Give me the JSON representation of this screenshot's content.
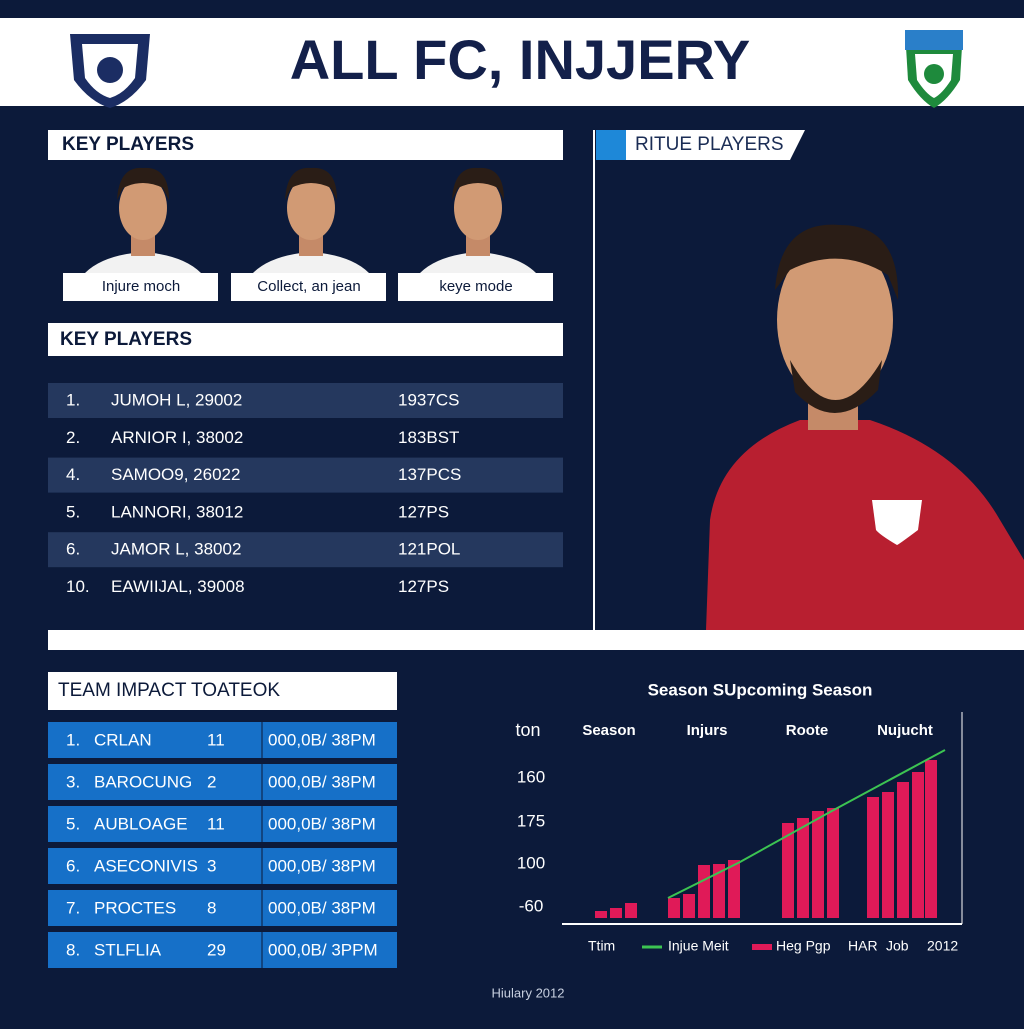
{
  "header": {
    "title": "ALL FC, INJJERY"
  },
  "key_players": {
    "title": "KEY PLAYERS",
    "cards": [
      "Injure moch",
      "Collect, an jean",
      "keye mode"
    ]
  },
  "key_table": {
    "title": "KEY PLAYERS",
    "rows": [
      [
        "1.",
        "JUMOH L, 29002",
        "1937CS"
      ],
      [
        "2.",
        "ARNIOR I, 38002",
        "183BST"
      ],
      [
        "4.",
        "SAMOO9, 26022",
        "137PCS"
      ],
      [
        "5.",
        "LANNORI, 38012",
        "127PS"
      ],
      [
        "6.",
        "JAMOR L, 38002",
        "121POL"
      ],
      [
        "10.",
        "EAWIIJAL, 39008",
        "127PS"
      ]
    ]
  },
  "feature": {
    "title": "RITUE PLAYERS"
  },
  "impact": {
    "title": "TEAM IMPACT TOATEOK",
    "rows": [
      [
        "1.",
        "CRLAN",
        "11",
        "000,0B/ 38PM"
      ],
      [
        "3.",
        "BAROCUNG",
        "2",
        "000,0B/ 38PM"
      ],
      [
        "5.",
        "AUBLOAGE",
        "11",
        "000,0B/ 38PM"
      ],
      [
        "6.",
        "ASECONIVIS",
        "3",
        "000,0B/ 38PM"
      ],
      [
        "7.",
        "PROCTES",
        "8",
        "000,0B/ 38PM"
      ],
      [
        "8.",
        "STLFLIA",
        "29",
        "000,0B/ 3PPM"
      ]
    ]
  },
  "season_chart": {
    "title": "Season SUpcoming Season",
    "columns": [
      "ton",
      "Season",
      "Injurs",
      "Roote",
      "Nujucht"
    ],
    "axis_labels": [
      "160",
      "175",
      "100",
      "-60"
    ],
    "legend": [
      "Ttim",
      "Injue Meit",
      "Heg Pgp",
      "HAR",
      "Job",
      "2012"
    ]
  },
  "footer": {
    "text": "Hiulary 2012"
  }
}
